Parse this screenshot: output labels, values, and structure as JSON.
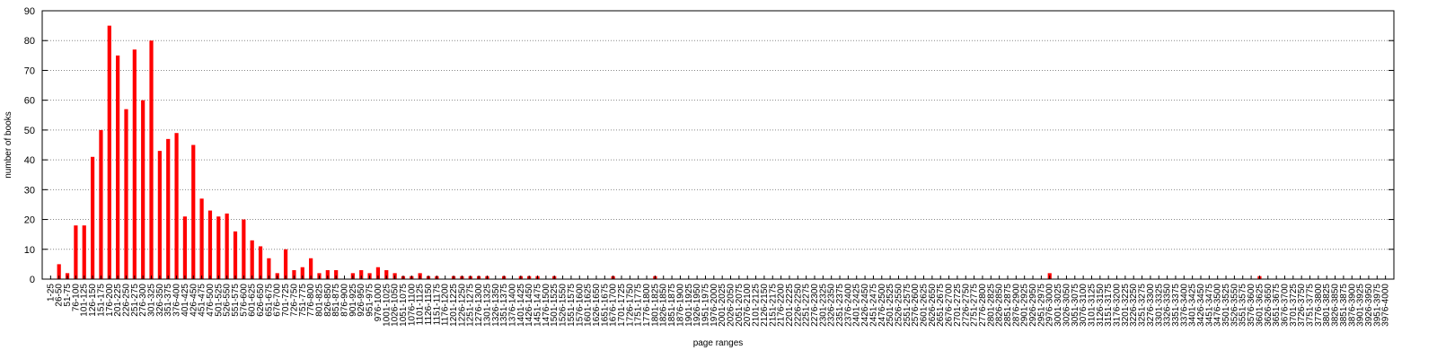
{
  "chart_data": {
    "type": "bar",
    "xlabel": "page ranges",
    "ylabel": "number of books",
    "ylim": [
      0,
      90
    ],
    "yticks": [
      0,
      10,
      20,
      30,
      40,
      50,
      60,
      70,
      80,
      90
    ],
    "grid": "horizontal, dotted",
    "bar_color": "#ff0000",
    "bin_width": 25,
    "range_start": 1,
    "range_end": 4000,
    "label_every": 1,
    "values": [
      0,
      5,
      2,
      18,
      18,
      41,
      50,
      85,
      75,
      57,
      77,
      60,
      80,
      43,
      47,
      49,
      21,
      45,
      27,
      23,
      21,
      22,
      16,
      20,
      13,
      11,
      7,
      2,
      10,
      3,
      4,
      7,
      2,
      3,
      3,
      0,
      2,
      3,
      2,
      4,
      3,
      2,
      1,
      1,
      2,
      1,
      1,
      0,
      1,
      1,
      1,
      1,
      1,
      0,
      1,
      0,
      1,
      1,
      1,
      0,
      1,
      0,
      0,
      0,
      0,
      0,
      0,
      1,
      0,
      0,
      0,
      0,
      1,
      0,
      0,
      0,
      0,
      0,
      0,
      0,
      0,
      0,
      0,
      0,
      0,
      0,
      0,
      0,
      0,
      0,
      0,
      0,
      0,
      0,
      0,
      0,
      0,
      0,
      0,
      0,
      0,
      0,
      0,
      0,
      0,
      0,
      0,
      0,
      0,
      0,
      0,
      0,
      0,
      0,
      0,
      0,
      0,
      0,
      0,
      2,
      0,
      0,
      0,
      0,
      0,
      0,
      0,
      0,
      0,
      0,
      0,
      0,
      0,
      0,
      0,
      0,
      0,
      0,
      0,
      0,
      0,
      0,
      0,
      0,
      1,
      0,
      0,
      0,
      0,
      0,
      0,
      0,
      0,
      0,
      0,
      0
    ]
  }
}
